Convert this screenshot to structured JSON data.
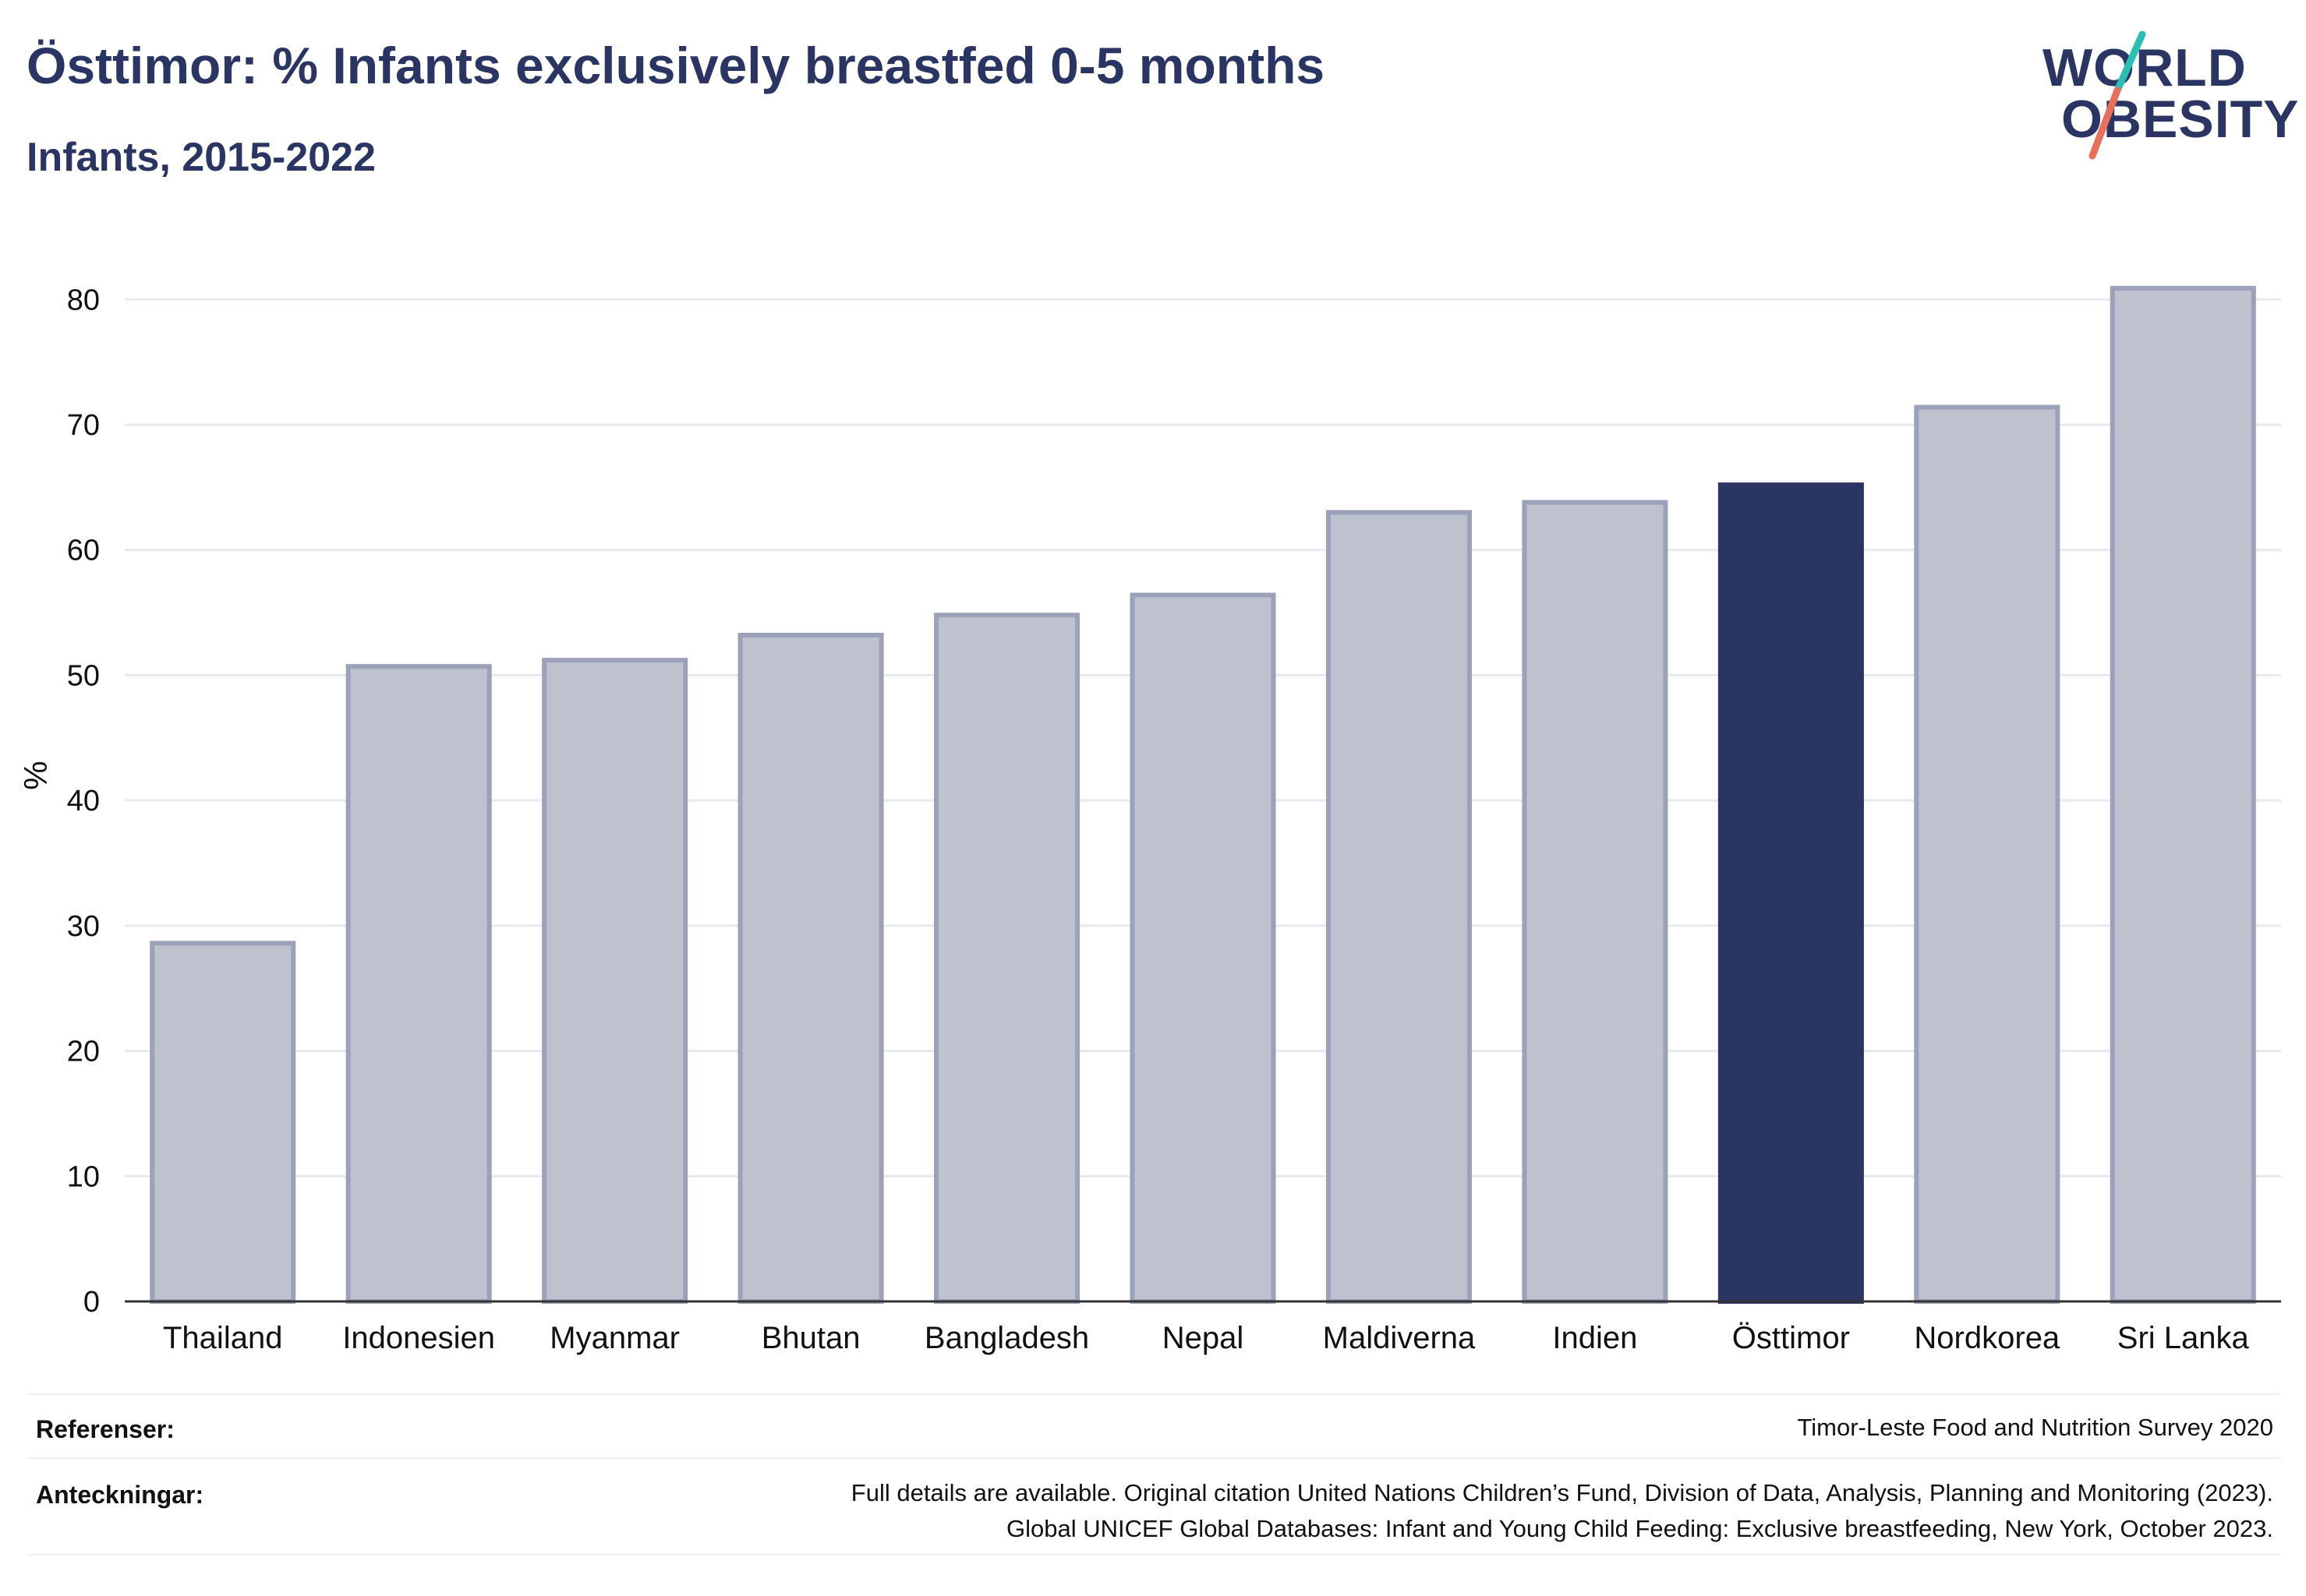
{
  "header": {
    "title": "Östtimor: % Infants exclusively breastfed 0-5 months",
    "subtitle": "Infants, 2015-2022"
  },
  "logo": {
    "line1": "WORLD",
    "line2": "OBESITY",
    "accent_colors": [
      "#2bbfb4",
      "#e8705a"
    ]
  },
  "chart_data": {
    "type": "bar",
    "categories": [
      "Thailand",
      "Indonesien",
      "Myanmar",
      "Bhutan",
      "Bangladesh",
      "Nepal",
      "Maldiverna",
      "Indien",
      "Östtimor",
      "Nordkorea",
      "Sri Lanka"
    ],
    "values": [
      28.6,
      50.7,
      51.2,
      53.2,
      54.8,
      56.4,
      63.0,
      63.8,
      65.2,
      71.4,
      80.9
    ],
    "highlight": "Östtimor",
    "ylabel": "%",
    "xlabel": "",
    "ylim": [
      0,
      84
    ],
    "yticks": [
      0,
      10,
      20,
      30,
      40,
      50,
      60,
      70,
      80
    ],
    "grid": true,
    "colors": {
      "bar": "#bec1ce",
      "bar_edge": "#9ba1b8",
      "highlight": "#2a3563",
      "grid": "#e8e9ee",
      "axis": "#333333"
    }
  },
  "footer": {
    "references_label": "Referenser:",
    "references_text": "Timor-Leste Food and Nutrition Survey 2020",
    "notes_label": "Anteckningar:",
    "notes_line1": "Full details are available. Original citation United Nations Children’s Fund, Division of Data, Analysis, Planning and Monitoring (2023).",
    "notes_line2": "Global UNICEF Global Databases: Infant and Young Child Feeding: Exclusive breastfeeding, New York, October 2023."
  }
}
